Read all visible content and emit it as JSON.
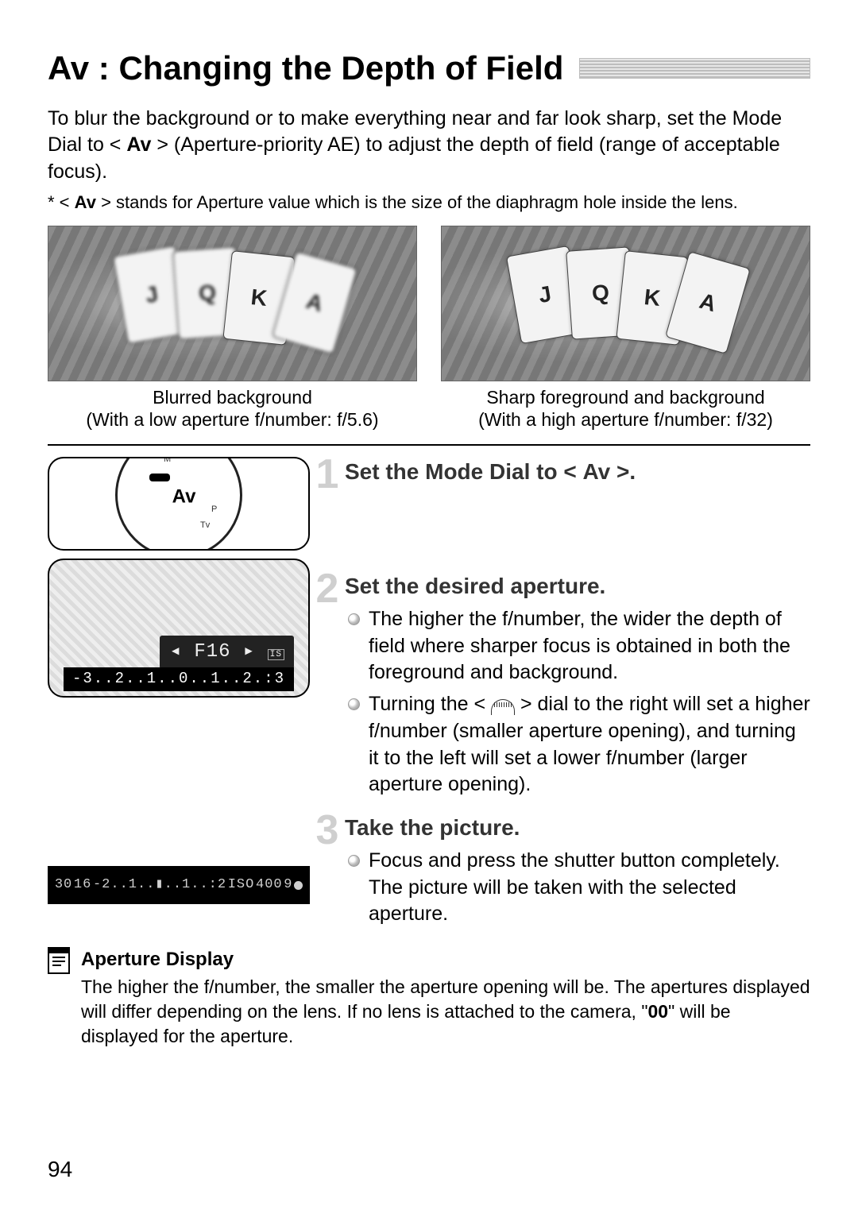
{
  "title": "Av : Changing the Depth of Field",
  "intro_html": "To blur the background or to make everything near and far look sharp, set the Mode Dial to < <b>Av</b> > (Aperture-priority AE) to adjust the depth of field (range of acceptable focus).",
  "footnote_html": "* < <b>Av</b> > stands for Aperture value which is the size of the diaphragm hole inside the lens.",
  "images": {
    "left": {
      "caption_line1": "Blurred background",
      "caption_line2": "(With a low aperture f/number: f/5.6)"
    },
    "right": {
      "caption_line1": "Sharp foreground and background",
      "caption_line2": "(With a high aperture f/number: f/32)"
    }
  },
  "dial_mode_label": "Av",
  "lcd_value": "F16",
  "exposure_scale": "-3..2..1..0..1..2.:3",
  "viewfinder": {
    "shutter": "30",
    "aperture": "16",
    "scale": "-2..1..▮..1..:2",
    "iso_label": "ISO",
    "iso_value": "400",
    "shots": "9"
  },
  "steps": [
    {
      "num": "1",
      "title_html": "Set the Mode Dial to < <b>Av</b> >.",
      "bullets_html": []
    },
    {
      "num": "2",
      "title_html": "Set the desired aperture.",
      "bullets_html": [
        "The higher the f/number, the wider the depth of field where sharper focus is obtained in both the foreground and background.",
        "Turning the < <span class=\"dial-icon\" data-name=\"main-dial-icon\" data-interactable=\"false\"></span> > dial to the right will set a higher f/number (smaller aperture opening), and turning it to the left will set a lower f/number (larger aperture opening)."
      ]
    },
    {
      "num": "3",
      "title_html": "Take the picture.",
      "bullets_html": [
        "Focus and press the shutter button completely. The picture will be taken with the selected aperture."
      ]
    }
  ],
  "note": {
    "title": "Aperture Display",
    "body_html": "The higher the f/number, the smaller the aperture opening will be. The apertures displayed will differ depending on the lens. If no lens is attached to the camera, \"<b>00</b>\" will be displayed for the aperture."
  },
  "page_number": "94",
  "colors": {
    "step_num": "#cfcfcf",
    "text": "#000000",
    "bg": "#ffffff"
  }
}
